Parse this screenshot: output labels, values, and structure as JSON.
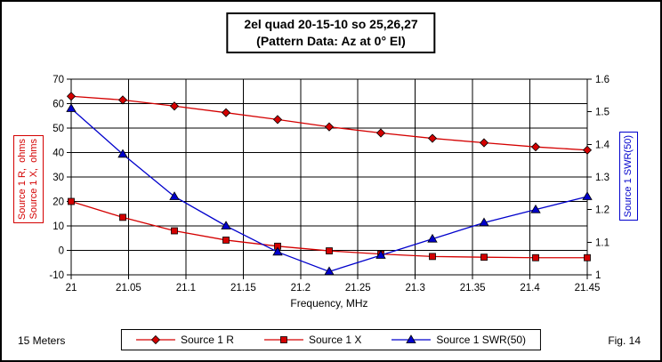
{
  "header": {
    "title_line1": "2el quad 20-15-10 so 25,26,27",
    "title_line2": "(Pattern Data: Az at 0° El)"
  },
  "footer": {
    "left": "15 Meters",
    "right": "Fig. 14"
  },
  "colors": {
    "impedance": "#d40000",
    "swr": "#0000cc",
    "grid": "#000000",
    "marker_outline": "#000000"
  },
  "chart_data": {
    "type": "line",
    "x": [
      21,
      21.045,
      21.09,
      21.135,
      21.18,
      21.225,
      21.27,
      21.315,
      21.36,
      21.405,
      21.45
    ],
    "series": [
      {
        "name": "Source 1 R",
        "axis": "left",
        "color": "#d40000",
        "marker": "diamond",
        "values": [
          63,
          61.5,
          59,
          56.3,
          53.5,
          50.5,
          48,
          45.8,
          44,
          42.3,
          41
        ]
      },
      {
        "name": "Source 1 X",
        "axis": "left",
        "color": "#d40000",
        "marker": "square",
        "values": [
          20,
          13.5,
          8,
          4.2,
          1.7,
          -0.2,
          -1.5,
          -2.5,
          -2.8,
          -3,
          -3
        ]
      },
      {
        "name": "Source 1 SWR(50)",
        "axis": "right",
        "color": "#0000cc",
        "marker": "triangle",
        "values": [
          1.51,
          1.37,
          1.24,
          1.15,
          1.07,
          1.01,
          1.06,
          1.11,
          1.16,
          1.2,
          1.24
        ]
      }
    ],
    "xlabel": "Frequency, MHz",
    "x_min": 21,
    "x_max": 21.45,
    "x_ticks": [
      21,
      21.05,
      21.1,
      21.15,
      21.2,
      21.25,
      21.3,
      21.35,
      21.4,
      21.45
    ],
    "x_tick_labels": [
      "21",
      "21.05",
      "21.1",
      "21.15",
      "21.2",
      "21.25",
      "21.3",
      "21.35",
      "21.4",
      "21.45"
    ],
    "left_axis": {
      "label_line1": "Source 1 R,  ohms",
      "label_line2": "Source 1 X,  ohms",
      "min": -10,
      "max": 70,
      "ticks": [
        70,
        60,
        50,
        40,
        30,
        20,
        10,
        0,
        -10
      ],
      "tick_labels": [
        "70",
        "60",
        "50",
        "40",
        "30",
        "20",
        "10",
        "0",
        "-10"
      ]
    },
    "right_axis": {
      "label": "Source 1 SWR(50)",
      "min": 1,
      "max": 1.6,
      "ticks": [
        1.6,
        1.5,
        1.4,
        1.3,
        1.2,
        1.1,
        1
      ],
      "tick_labels": [
        "1.6",
        "1.5",
        "1.4",
        "1.3",
        "1.2",
        "1.1",
        "1"
      ]
    },
    "grid": true,
    "legend_position": "bottom"
  }
}
